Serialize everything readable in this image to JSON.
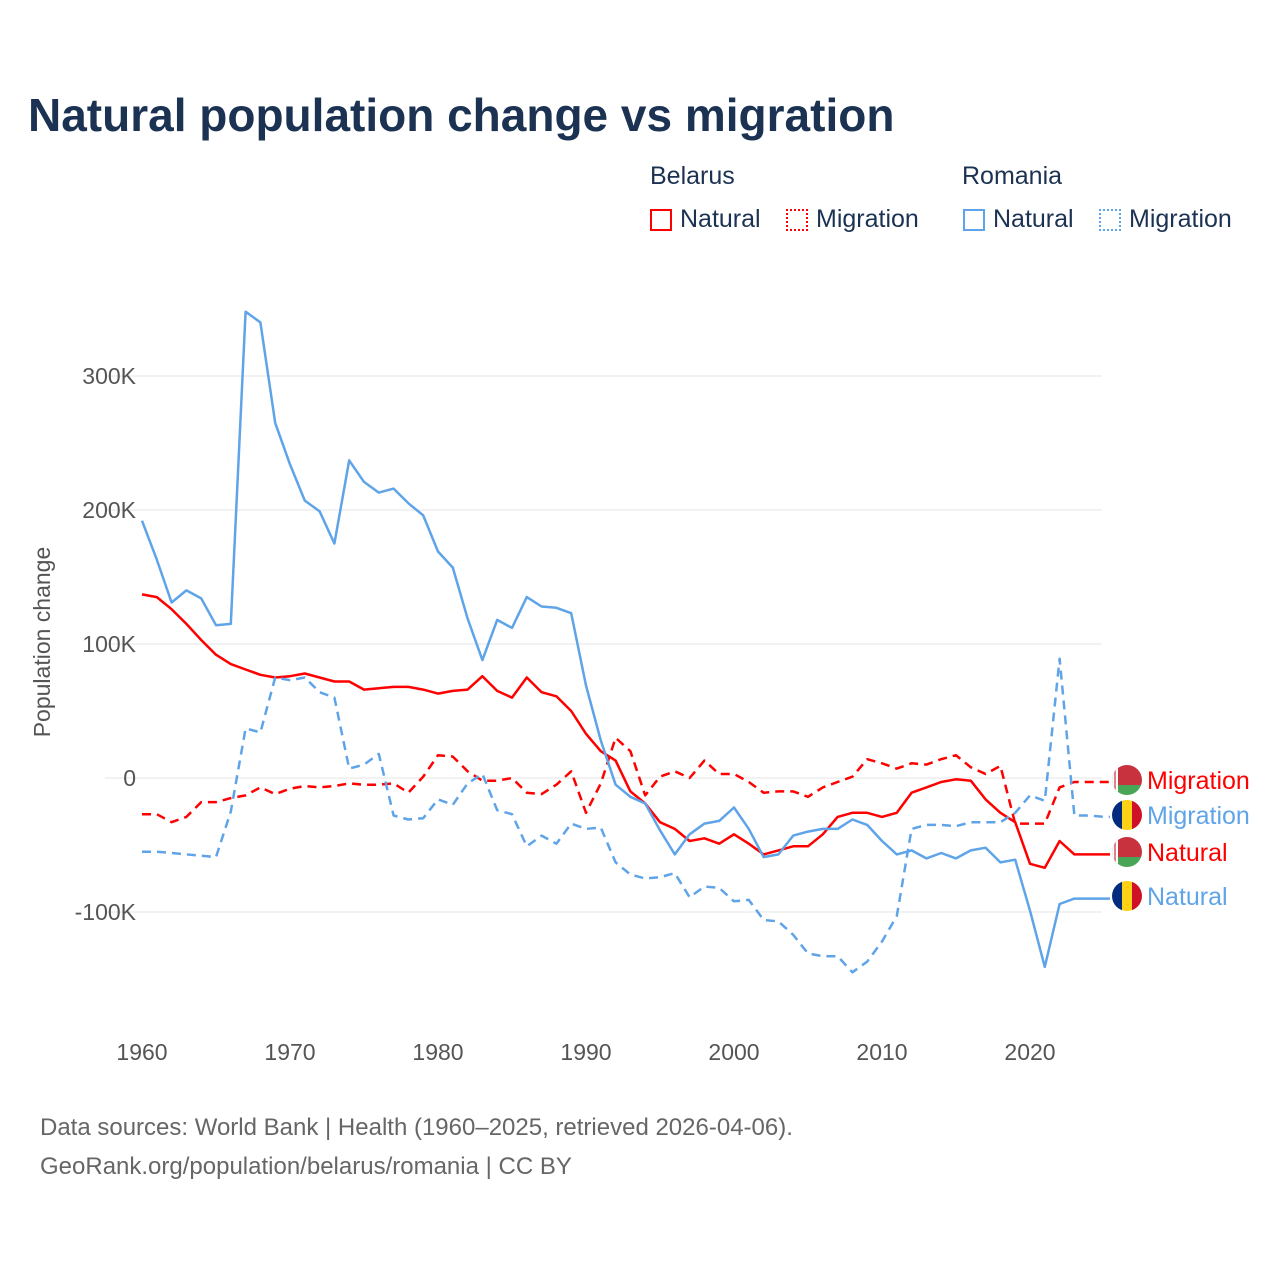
{
  "title": "Natural population change vs migration",
  "legend": {
    "groups": [
      {
        "name": "Belarus",
        "items": [
          {
            "label": "Natural"
          },
          {
            "label": "Migration"
          }
        ]
      },
      {
        "name": "Romania",
        "items": [
          {
            "label": "Natural"
          },
          {
            "label": "Migration"
          }
        ]
      }
    ]
  },
  "source": {
    "line1": "Data sources: World Bank | Health (1960–2025, retrieved 2026-04-06).",
    "line2": "GeoRank.org/population/belarus/romania | CC BY"
  },
  "chart_data": {
    "type": "line",
    "title": "Natural population change vs migration",
    "xlabel": "",
    "ylabel": "Population change",
    "xlim": [
      1960,
      2025
    ],
    "ylim": [
      -160000,
      360000
    ],
    "x_ticks": [
      1960,
      1970,
      1980,
      1990,
      2000,
      2010,
      2020
    ],
    "x_tick_labels": [
      "1960",
      "1970",
      "1980",
      "1990",
      "2000",
      "2010",
      "2020"
    ],
    "y_ticks": [
      -100000,
      0,
      100000,
      200000,
      300000
    ],
    "y_tick_labels": [
      "-100K",
      "0",
      "100K",
      "200K",
      "300K"
    ],
    "grid": true,
    "legend_position": "top-right",
    "x_start": 1960,
    "series": [
      {
        "name": "Belarus Natural",
        "country": "Belarus",
        "kind": "Natural",
        "color": "#ff0000",
        "dashed": false,
        "end_label": "Natural",
        "values": [
          137,
          135,
          126,
          115,
          103,
          92,
          85,
          81,
          77,
          75,
          76,
          78,
          75,
          72,
          72,
          66,
          67,
          68,
          68,
          66,
          63,
          65,
          66,
          76,
          65,
          60,
          75,
          64,
          61,
          50,
          33,
          20,
          13,
          -10,
          -19,
          -33,
          -38,
          -47,
          -45,
          -49,
          -42,
          -49,
          -57,
          -54,
          -51,
          -51,
          -42,
          -29,
          -26,
          -26,
          -29,
          -26,
          -11,
          -7,
          -3,
          -1,
          -2,
          -16,
          -26,
          -33,
          -64,
          -67,
          -47,
          -57,
          -57,
          -57
        ]
      },
      {
        "name": "Belarus Migration",
        "country": "Belarus",
        "kind": "Migration",
        "color": "#ff0000",
        "dashed": true,
        "end_label": "Migration",
        "values": [
          -27,
          -27,
          -33,
          -29,
          -18,
          -18,
          -15,
          -13,
          -7,
          -12,
          -8,
          -6,
          -7,
          -6,
          -4,
          -5,
          -5,
          -4,
          -11,
          1,
          17,
          16,
          5,
          -2,
          -2,
          0,
          -11,
          -12,
          -5,
          5,
          -26,
          -4,
          30,
          20,
          -13,
          1,
          5,
          0,
          13,
          3,
          3,
          -3,
          -11,
          -10,
          -10,
          -14,
          -7,
          -3,
          1,
          14,
          11,
          7,
          11,
          10,
          14,
          17,
          8,
          3,
          9,
          -34,
          -34,
          -34,
          -7,
          -3,
          -3,
          -3
        ]
      },
      {
        "name": "Romania Natural",
        "country": "Romania",
        "kind": "Natural",
        "color": "#5fa4e8",
        "dashed": false,
        "end_label": "Natural",
        "values": [
          192,
          163,
          131,
          140,
          134,
          114,
          115,
          348,
          340,
          265,
          234,
          207,
          199,
          175,
          237,
          221,
          213,
          216,
          205,
          196,
          169,
          157,
          119,
          88,
          118,
          112,
          135,
          128,
          127,
          123,
          69,
          28,
          -5,
          -14,
          -19,
          -39,
          -57,
          -42,
          -34,
          -32,
          -22,
          -38,
          -59,
          -57,
          -43,
          -40,
          -38,
          -38,
          -31,
          -35,
          -47,
          -57,
          -54,
          -60,
          -56,
          -60,
          -54,
          -52,
          -63,
          -61,
          -99,
          -141,
          -94,
          -90,
          -90,
          -90
        ]
      },
      {
        "name": "Romania Migration",
        "country": "Romania",
        "kind": "Migration",
        "color": "#5fa4e8",
        "dashed": true,
        "end_label": "Migration",
        "values": [
          -55,
          -55,
          -56,
          -57,
          -58,
          -59,
          -25,
          37,
          34,
          75,
          73,
          75,
          64,
          60,
          7,
          10,
          18,
          -28,
          -31,
          -30,
          -16,
          -20,
          -4,
          3,
          -24,
          -27,
          -51,
          -43,
          -49,
          -34,
          -38,
          -37,
          -63,
          -72,
          -75,
          -74,
          -71,
          -89,
          -81,
          -82,
          -92,
          -91,
          -106,
          -107,
          -117,
          -131,
          -133,
          -133,
          -145,
          -137,
          -122,
          -103,
          -38,
          -35,
          -35,
          -36,
          -33,
          -33,
          -33,
          -26,
          -13,
          -17,
          89,
          -28,
          -28,
          -29
        ]
      }
    ],
    "value_unit": "thousands"
  }
}
